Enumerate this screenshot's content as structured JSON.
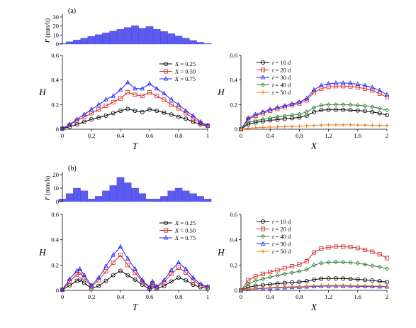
{
  "chart_data": [
    {
      "id": "a-rain",
      "panel_label": "(a)",
      "type": "bar",
      "ylabel_var": "r",
      "ylabel_unit": " (mm/h)",
      "ylim": [
        0,
        30
      ],
      "yticks": [
        0,
        10,
        20,
        30
      ],
      "x": [
        0.0,
        0.05,
        0.1,
        0.15,
        0.2,
        0.25,
        0.3,
        0.35,
        0.4,
        0.45,
        0.5,
        0.55,
        0.6,
        0.65,
        0.7,
        0.75,
        0.8,
        0.85,
        0.9,
        0.95,
        1.0
      ],
      "values": [
        0.5,
        2.5,
        4.5,
        6.5,
        8.5,
        10.5,
        12.5,
        14.5,
        16.5,
        18.5,
        20.5,
        17.5,
        19.5,
        16.5,
        14,
        11.5,
        9,
        6.5,
        4,
        2,
        0.5
      ]
    },
    {
      "id": "a-H-T",
      "type": "line",
      "xlabel": "T",
      "ylabel": "H",
      "xlim": [
        0,
        1
      ],
      "ylim": [
        0,
        0.6
      ],
      "xticks": [
        "0",
        "0.2",
        "0.4",
        "0.6",
        "0.8",
        "1"
      ],
      "yticks": [
        "0",
        "0.2",
        "0.4",
        "0.6"
      ],
      "legend_position": "top-right",
      "series": [
        {
          "var": "X",
          "val": " = 0.25",
          "color": "#000000",
          "marker": "circle",
          "x": [
            0,
            0.05,
            0.1,
            0.15,
            0.2,
            0.25,
            0.3,
            0.35,
            0.4,
            0.45,
            0.5,
            0.55,
            0.6,
            0.65,
            0.7,
            0.75,
            0.8,
            0.85,
            0.9,
            0.95,
            1
          ],
          "y": [
            0.005,
            0.02,
            0.04,
            0.06,
            0.08,
            0.095,
            0.11,
            0.13,
            0.15,
            0.165,
            0.15,
            0.14,
            0.16,
            0.15,
            0.135,
            0.12,
            0.1,
            0.085,
            0.06,
            0.04,
            0.025
          ]
        },
        {
          "var": "X",
          "val": " = 0.50",
          "color": "#d62728",
          "marker": "square",
          "x": [
            0,
            0.05,
            0.1,
            0.15,
            0.2,
            0.25,
            0.3,
            0.35,
            0.4,
            0.45,
            0.5,
            0.55,
            0.6,
            0.65,
            0.7,
            0.75,
            0.8,
            0.85,
            0.9,
            0.95,
            1
          ],
          "y": [
            0.005,
            0.035,
            0.07,
            0.1,
            0.13,
            0.16,
            0.19,
            0.22,
            0.25,
            0.3,
            0.28,
            0.27,
            0.3,
            0.27,
            0.24,
            0.2,
            0.17,
            0.13,
            0.09,
            0.05,
            0.03
          ]
        },
        {
          "var": "X",
          "val": " = 0.75",
          "color": "#1f1fff",
          "marker": "triangle",
          "x": [
            0,
            0.05,
            0.1,
            0.15,
            0.2,
            0.25,
            0.3,
            0.35,
            0.4,
            0.45,
            0.5,
            0.55,
            0.6,
            0.65,
            0.7,
            0.75,
            0.8,
            0.85,
            0.9,
            0.95,
            1
          ],
          "y": [
            0.005,
            0.04,
            0.08,
            0.12,
            0.16,
            0.2,
            0.24,
            0.27,
            0.32,
            0.38,
            0.33,
            0.33,
            0.37,
            0.33,
            0.29,
            0.24,
            0.2,
            0.15,
            0.11,
            0.06,
            0.03
          ]
        }
      ]
    },
    {
      "id": "a-H-X",
      "type": "line",
      "xlabel": "X",
      "ylabel": "H",
      "xlim": [
        0,
        2
      ],
      "ylim": [
        0,
        0.6
      ],
      "xticks": [
        "0",
        "0.4",
        "0.8",
        "1.2",
        "1.6",
        "2"
      ],
      "yticks": [
        "0",
        "0.2",
        "0.4",
        "0.6"
      ],
      "legend_position": "top-left",
      "series": [
        {
          "var": "t",
          "val": " = 10 d",
          "color": "#000000",
          "marker": "circle",
          "x": [
            0,
            0.1,
            0.2,
            0.3,
            0.4,
            0.5,
            0.6,
            0.7,
            0.8,
            0.9,
            1.0,
            1.1,
            1.2,
            1.3,
            1.4,
            1.5,
            1.6,
            1.7,
            1.8,
            1.9,
            2.0
          ],
          "y": [
            0,
            0.04,
            0.055,
            0.065,
            0.072,
            0.078,
            0.084,
            0.09,
            0.095,
            0.11,
            0.14,
            0.155,
            0.158,
            0.158,
            0.157,
            0.155,
            0.152,
            0.148,
            0.14,
            0.13,
            0.115
          ]
        },
        {
          "var": "t",
          "val": " = 20 d",
          "color": "#d62728",
          "marker": "square",
          "x": [
            0,
            0.1,
            0.2,
            0.3,
            0.4,
            0.5,
            0.6,
            0.7,
            0.8,
            0.9,
            1.0,
            1.1,
            1.2,
            1.3,
            1.4,
            1.5,
            1.6,
            1.7,
            1.8,
            1.9,
            2.0
          ],
          "y": [
            0,
            0.08,
            0.11,
            0.13,
            0.15,
            0.165,
            0.18,
            0.195,
            0.21,
            0.235,
            0.3,
            0.33,
            0.345,
            0.35,
            0.35,
            0.348,
            0.34,
            0.33,
            0.315,
            0.29,
            0.26
          ]
        },
        {
          "var": "t",
          "val": " = 30 d",
          "color": "#1f1fff",
          "marker": "triangle",
          "x": [
            0,
            0.1,
            0.2,
            0.3,
            0.4,
            0.5,
            0.6,
            0.7,
            0.8,
            0.9,
            1.0,
            1.1,
            1.2,
            1.3,
            1.4,
            1.5,
            1.6,
            1.7,
            1.8,
            1.9,
            2.0
          ],
          "y": [
            0,
            0.09,
            0.12,
            0.14,
            0.16,
            0.175,
            0.19,
            0.205,
            0.22,
            0.25,
            0.32,
            0.355,
            0.37,
            0.375,
            0.375,
            0.373,
            0.365,
            0.355,
            0.34,
            0.315,
            0.28
          ]
        },
        {
          "var": "t",
          "val": " = 40 d",
          "color": "#2e7d32",
          "marker": "diamond",
          "x": [
            0,
            0.1,
            0.2,
            0.3,
            0.4,
            0.5,
            0.6,
            0.7,
            0.8,
            0.9,
            1.0,
            1.1,
            1.2,
            1.3,
            1.4,
            1.5,
            1.6,
            1.7,
            1.8,
            1.9,
            2.0
          ],
          "y": [
            0,
            0.055,
            0.07,
            0.08,
            0.09,
            0.1,
            0.108,
            0.115,
            0.122,
            0.14,
            0.175,
            0.195,
            0.2,
            0.2,
            0.2,
            0.198,
            0.195,
            0.19,
            0.18,
            0.17,
            0.155
          ]
        },
        {
          "var": "t",
          "val": " = 50 d",
          "color": "#f07f1b",
          "marker": "plus",
          "x": [
            0,
            0.1,
            0.2,
            0.3,
            0.4,
            0.5,
            0.6,
            0.7,
            0.8,
            0.9,
            1.0,
            1.1,
            1.2,
            1.3,
            1.4,
            1.5,
            1.6,
            1.7,
            1.8,
            1.9,
            2.0
          ],
          "y": [
            0,
            0.008,
            0.012,
            0.015,
            0.017,
            0.019,
            0.021,
            0.023,
            0.025,
            0.027,
            0.031,
            0.034,
            0.035,
            0.035,
            0.035,
            0.035,
            0.034,
            0.033,
            0.032,
            0.031,
            0.03
          ]
        }
      ]
    },
    {
      "id": "b-rain",
      "panel_label": "(b)",
      "type": "bar",
      "ylabel_var": "r",
      "ylabel_unit": " (mm/h)",
      "ylim": [
        0,
        20
      ],
      "yticks": [
        0,
        10,
        20
      ],
      "x": [
        0.0,
        0.05,
        0.1,
        0.15,
        0.2,
        0.25,
        0.3,
        0.35,
        0.4,
        0.45,
        0.5,
        0.55,
        0.6,
        0.65,
        0.7,
        0.75,
        0.8,
        0.85,
        0.9,
        0.95,
        1.0
      ],
      "values": [
        2,
        6,
        10,
        8,
        2,
        4,
        8,
        12,
        18,
        14,
        10,
        6,
        2,
        2,
        4,
        8,
        10,
        8,
        6,
        4,
        2
      ]
    },
    {
      "id": "b-H-T",
      "type": "line",
      "xlabel": "T",
      "ylabel": "H",
      "xlim": [
        0,
        1
      ],
      "ylim": [
        0,
        0.6
      ],
      "xticks": [
        "0",
        "0.2",
        "0.4",
        "0.6",
        "0.8",
        "1"
      ],
      "yticks": [
        "0",
        "0.2",
        "0.4",
        "0.6"
      ],
      "legend_position": "top-right",
      "series": [
        {
          "var": "X",
          "val": " = 0.25",
          "color": "#000000",
          "marker": "circle",
          "x": [
            0,
            0.05,
            0.1,
            0.12,
            0.15,
            0.2,
            0.25,
            0.3,
            0.35,
            0.4,
            0.45,
            0.5,
            0.55,
            0.6,
            0.62,
            0.65,
            0.7,
            0.75,
            0.8,
            0.85,
            0.9,
            0.95,
            1
          ],
          "y": [
            0.005,
            0.04,
            0.075,
            0.085,
            0.06,
            0.015,
            0.035,
            0.075,
            0.12,
            0.155,
            0.12,
            0.085,
            0.045,
            0.01,
            0.03,
            0.015,
            0.035,
            0.07,
            0.1,
            0.08,
            0.045,
            0.025,
            0.015
          ]
        },
        {
          "var": "X",
          "val": " = 0.50",
          "color": "#d62728",
          "marker": "square",
          "x": [
            0,
            0.05,
            0.1,
            0.12,
            0.15,
            0.2,
            0.25,
            0.3,
            0.35,
            0.4,
            0.45,
            0.5,
            0.55,
            0.6,
            0.62,
            0.65,
            0.7,
            0.75,
            0.8,
            0.85,
            0.9,
            0.95,
            1
          ],
          "y": [
            0.005,
            0.07,
            0.125,
            0.14,
            0.1,
            0.03,
            0.08,
            0.15,
            0.22,
            0.28,
            0.2,
            0.14,
            0.07,
            0.02,
            0.055,
            0.025,
            0.065,
            0.13,
            0.18,
            0.14,
            0.08,
            0.04,
            0.025
          ]
        },
        {
          "var": "X",
          "val": " = 0.75",
          "color": "#1f1fff",
          "marker": "triangle",
          "x": [
            0,
            0.05,
            0.1,
            0.12,
            0.15,
            0.2,
            0.25,
            0.3,
            0.35,
            0.4,
            0.45,
            0.5,
            0.55,
            0.6,
            0.62,
            0.65,
            0.7,
            0.75,
            0.8,
            0.85,
            0.9,
            0.95,
            1
          ],
          "y": [
            0.005,
            0.09,
            0.155,
            0.17,
            0.12,
            0.04,
            0.1,
            0.19,
            0.28,
            0.345,
            0.25,
            0.17,
            0.08,
            0.025,
            0.07,
            0.03,
            0.08,
            0.16,
            0.22,
            0.17,
            0.1,
            0.05,
            0.03
          ]
        }
      ]
    },
    {
      "id": "b-H-X",
      "type": "line",
      "xlabel": "X",
      "ylabel": "H",
      "xlim": [
        0,
        2
      ],
      "ylim": [
        0,
        0.6
      ],
      "xticks": [
        "0",
        "0.4",
        "0.8",
        "1.2",
        "1.6",
        "2"
      ],
      "yticks": [
        "0",
        "0.2",
        "0.4",
        "0.6"
      ],
      "legend_position": "top-left",
      "series": [
        {
          "var": "t",
          "val": " = 10 d",
          "color": "#000000",
          "marker": "circle",
          "x": [
            0,
            0.1,
            0.2,
            0.3,
            0.4,
            0.5,
            0.6,
            0.7,
            0.8,
            0.9,
            1.0,
            1.1,
            1.2,
            1.3,
            1.4,
            1.5,
            1.6,
            1.7,
            1.8,
            1.9,
            2.0
          ],
          "y": [
            0,
            0.025,
            0.035,
            0.042,
            0.048,
            0.053,
            0.058,
            0.063,
            0.067,
            0.072,
            0.085,
            0.092,
            0.094,
            0.094,
            0.093,
            0.09,
            0.087,
            0.083,
            0.078,
            0.072,
            0.065
          ]
        },
        {
          "var": "t",
          "val": " = 20 d",
          "color": "#d62728",
          "marker": "square",
          "x": [
            0,
            0.1,
            0.2,
            0.3,
            0.4,
            0.5,
            0.6,
            0.7,
            0.8,
            0.9,
            1.0,
            1.1,
            1.2,
            1.3,
            1.4,
            1.5,
            1.6,
            1.7,
            1.8,
            1.9,
            2.0
          ],
          "y": [
            0,
            0.08,
            0.11,
            0.13,
            0.145,
            0.16,
            0.175,
            0.19,
            0.205,
            0.23,
            0.3,
            0.33,
            0.34,
            0.345,
            0.345,
            0.342,
            0.335,
            0.32,
            0.305,
            0.285,
            0.255
          ]
        },
        {
          "var": "t",
          "val": " = 40 d",
          "color": "#2e7d32",
          "marker": "diamond",
          "x": [
            0,
            0.1,
            0.2,
            0.3,
            0.4,
            0.5,
            0.6,
            0.7,
            0.8,
            0.9,
            1.0,
            1.1,
            1.2,
            1.3,
            1.4,
            1.5,
            1.6,
            1.7,
            1.8,
            1.9,
            2.0
          ],
          "y": [
            0,
            0.05,
            0.075,
            0.09,
            0.105,
            0.118,
            0.13,
            0.14,
            0.15,
            0.165,
            0.2,
            0.215,
            0.222,
            0.224,
            0.223,
            0.22,
            0.215,
            0.205,
            0.195,
            0.185,
            0.17
          ]
        },
        {
          "var": "t",
          "val": " = 30 d",
          "color": "#1f1fff",
          "marker": "triangle",
          "x": [
            0,
            0.1,
            0.2,
            0.3,
            0.4,
            0.5,
            0.6,
            0.7,
            0.8,
            0.9,
            1.0,
            1.1,
            1.2,
            1.3,
            1.4,
            1.5,
            1.6,
            1.7,
            1.8,
            1.9,
            2.0
          ],
          "y": [
            0,
            0.008,
            0.012,
            0.015,
            0.018,
            0.02,
            0.022,
            0.024,
            0.026,
            0.028,
            0.031,
            0.033,
            0.034,
            0.034,
            0.034,
            0.033,
            0.032,
            0.031,
            0.03,
            0.029,
            0.028
          ]
        },
        {
          "var": "t",
          "val": " = 50 d",
          "color": "#f07f1b",
          "marker": "plus",
          "x": [
            0,
            0.1,
            0.2,
            0.3,
            0.4,
            0.5,
            0.6,
            0.7,
            0.8,
            0.9,
            1.0,
            1.1,
            1.2,
            1.3,
            1.4,
            1.5,
            1.6,
            1.7,
            1.8,
            1.9,
            2.0
          ],
          "y": [
            0,
            0.01,
            0.015,
            0.019,
            0.022,
            0.025,
            0.027,
            0.029,
            0.031,
            0.033,
            0.036,
            0.038,
            0.039,
            0.039,
            0.039,
            0.038,
            0.037,
            0.036,
            0.035,
            0.034,
            0.033
          ]
        }
      ]
    }
  ]
}
